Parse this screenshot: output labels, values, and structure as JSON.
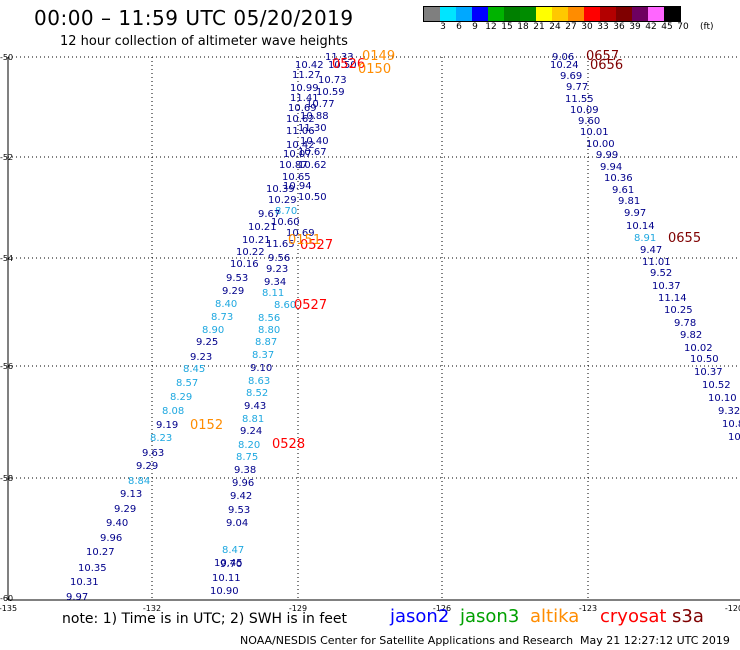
{
  "title": "00:00 – 11:59 UTC 05/20/2019",
  "subtitle": "12 hour collection of altimeter wave heights",
  "legend": {
    "colors": [
      "#7f7f7f",
      "#00e5ff",
      "#00a8ff",
      "#0000ff",
      "#00b300",
      "#007f00",
      "#008c00",
      "#ffff00",
      "#ffc800",
      "#ff8c00",
      "#ff0000",
      "#b30000",
      "#7f0000",
      "#6e0060",
      "#ff66ff",
      "#000000"
    ],
    "ticks": [
      "3",
      "6",
      "9",
      "12",
      "15",
      "18",
      "21",
      "24",
      "27",
      "30",
      "33",
      "36",
      "39",
      "42",
      "45",
      "70"
    ],
    "unit": "(ft)"
  },
  "lat_labels": [
    "-50",
    "-52",
    "-54",
    "-56",
    "-58",
    "-60"
  ],
  "lon_labels": [
    "-135",
    "-132",
    "-129",
    "-126",
    "-123",
    "-120"
  ],
  "left_track": [
    [
      "11.33",
      "#00008b"
    ],
    [
      "10.42",
      "#00008b"
    ],
    [
      "10.50",
      "#00008b"
    ],
    [
      "10.73",
      "#00008b"
    ],
    [
      "11.27",
      "#00008b"
    ],
    [
      "10.99",
      "#00008b"
    ],
    [
      "10.59",
      "#00008b"
    ],
    [
      "11.41",
      "#00008b"
    ],
    [
      "10.77",
      "#00008b"
    ],
    [
      "10.69",
      "#00008b"
    ],
    [
      "10.88",
      "#00008b"
    ],
    [
      "10.62",
      "#00008b"
    ],
    [
      "11.30",
      "#00008b"
    ],
    [
      "11.06",
      "#00008b"
    ],
    [
      "10.40",
      "#00008b"
    ],
    [
      "10.42",
      "#00008b"
    ],
    [
      "10.07",
      "#00008b"
    ],
    [
      "10.67",
      "#00008b"
    ],
    [
      "10.87",
      "#00008b"
    ],
    [
      "10.62",
      "#00008b"
    ],
    [
      "10.65",
      "#00008b"
    ],
    [
      "10.94",
      "#00008b"
    ],
    [
      "10.39",
      "#00008b"
    ],
    [
      "10.29",
      "#00008b"
    ],
    [
      "10.50",
      "#00008b"
    ],
    [
      "8.70",
      "#1fa8e0"
    ],
    [
      "9.67",
      "#00008b"
    ],
    [
      "10.60",
      "#00008b"
    ],
    [
      "10.21",
      "#00008b"
    ],
    [
      "10.69",
      "#00008b"
    ],
    [
      "10.21",
      "#00008b"
    ],
    [
      "11.65",
      "#00008b"
    ],
    [
      "10.22",
      "#00008b"
    ],
    [
      "9.56",
      "#00008b"
    ],
    [
      "10.16",
      "#00008b"
    ],
    [
      "9.23",
      "#00008b"
    ],
    [
      "9.53",
      "#00008b"
    ],
    [
      "9.34",
      "#00008b"
    ],
    [
      "9.29",
      "#00008b"
    ],
    [
      "8.11",
      "#1fa8e0"
    ],
    [
      "8.40",
      "#1fa8e0"
    ],
    [
      "8.60",
      "#1fa8e0"
    ],
    [
      "8.73",
      "#1fa8e0"
    ],
    [
      "8.56",
      "#1fa8e0"
    ],
    [
      "8.90",
      "#1fa8e0"
    ],
    [
      "8.80",
      "#1fa8e0"
    ],
    [
      "9.25",
      "#00008b"
    ],
    [
      "8.87",
      "#1fa8e0"
    ],
    [
      "9.23",
      "#00008b"
    ],
    [
      "8.37",
      "#1fa8e0"
    ],
    [
      "8.45",
      "#1fa8e0"
    ],
    [
      "9.10",
      "#00008b"
    ],
    [
      "8.57",
      "#1fa8e0"
    ],
    [
      "8.63",
      "#1fa8e0"
    ],
    [
      "8.29",
      "#1fa8e0"
    ],
    [
      "8.52",
      "#1fa8e0"
    ],
    [
      "8.08",
      "#1fa8e0"
    ],
    [
      "9.43",
      "#00008b"
    ],
    [
      "9.19",
      "#00008b"
    ],
    [
      "8.81",
      "#1fa8e0"
    ],
    [
      "9.24",
      "#00008b"
    ],
    [
      "8.23",
      "#1fa8e0"
    ],
    [
      "8.20",
      "#1fa8e0"
    ],
    [
      "9.63",
      "#00008b"
    ],
    [
      "8.75",
      "#1fa8e0"
    ],
    [
      "9.29",
      "#00008b"
    ],
    [
      "9.38",
      "#00008b"
    ],
    [
      "8.84",
      "#1fa8e0"
    ],
    [
      "9.96",
      "#00008b"
    ],
    [
      "9.13",
      "#00008b"
    ],
    [
      "9.42",
      "#00008b"
    ],
    [
      "9.29",
      "#00008b"
    ],
    [
      "9.53",
      "#00008b"
    ],
    [
      "9.40",
      "#00008b"
    ],
    [
      "9.04",
      "#00008b"
    ],
    [
      "9.96",
      "#00008b"
    ],
    [
      "8.47",
      "#1fa8e0"
    ],
    [
      "10.27",
      "#00008b"
    ],
    [
      "9.70",
      "#00008b"
    ],
    [
      "10.35",
      "#00008b"
    ],
    [
      "10.45",
      "#00008b"
    ],
    [
      "10.31",
      "#00008b"
    ],
    [
      "10.11",
      "#00008b"
    ],
    [
      "9.97",
      "#00008b"
    ],
    [
      "10.90",
      "#00008b"
    ]
  ],
  "right_track": [
    [
      "9.06",
      "#00008b"
    ],
    [
      "10.24",
      "#00008b"
    ],
    [
      "9.69",
      "#00008b"
    ],
    [
      "9.77",
      "#00008b"
    ],
    [
      "11.55",
      "#00008b"
    ],
    [
      "10.09",
      "#00008b"
    ],
    [
      "9.60",
      "#00008b"
    ],
    [
      "10.01",
      "#00008b"
    ],
    [
      "10.00",
      "#00008b"
    ],
    [
      "9.99",
      "#00008b"
    ],
    [
      "9.94",
      "#00008b"
    ],
    [
      "10.36",
      "#00008b"
    ],
    [
      "9.61",
      "#00008b"
    ],
    [
      "9.81",
      "#00008b"
    ],
    [
      "9.97",
      "#00008b"
    ],
    [
      "10.14",
      "#00008b"
    ],
    [
      "8.91",
      "#1fa8e0"
    ],
    [
      "9.47",
      "#00008b"
    ],
    [
      "11.01",
      "#00008b"
    ],
    [
      "9.52",
      "#00008b"
    ],
    [
      "10.37",
      "#00008b"
    ],
    [
      "11.14",
      "#00008b"
    ],
    [
      "10.25",
      "#00008b"
    ],
    [
      "9.78",
      "#00008b"
    ],
    [
      "9.82",
      "#00008b"
    ],
    [
      "10.02",
      "#00008b"
    ],
    [
      "10.50",
      "#00008b"
    ],
    [
      "10.37",
      "#00008b"
    ],
    [
      "10.52",
      "#00008b"
    ],
    [
      "10.10",
      "#00008b"
    ],
    [
      "9.32",
      "#00008b"
    ],
    [
      "10.8",
      "#00008b"
    ],
    [
      "10",
      "#00008b"
    ]
  ],
  "time_markers": [
    [
      "0149",
      "#ff8c00"
    ],
    [
      "0526",
      "#ff0000"
    ],
    [
      "0150",
      "#ff8c00"
    ],
    [
      "0657",
      "#7f0000"
    ],
    [
      "0656",
      "#7f0000"
    ],
    [
      "0527",
      "#ff0000"
    ],
    [
      "0151",
      "#ff8c00"
    ],
    [
      "0655",
      "#7f0000"
    ],
    [
      "0527",
      "#ff0000"
    ],
    [
      "0152",
      "#ff8c00"
    ],
    [
      "0528",
      "#ff0000"
    ]
  ],
  "footer": {
    "note": "note:  1) Time is in UTC;  2) SWH is in feet",
    "missions": [
      {
        "name": "jason2",
        "color": "#0000ff"
      },
      {
        "name": "jason3",
        "color": "#00a000"
      },
      {
        "name": "altika",
        "color": "#ff8c00"
      },
      {
        "name": "cryosat",
        "color": "#ff0000"
      },
      {
        "name": "s3a",
        "color": "#7f0000"
      }
    ],
    "credit": "NOAA/NESDIS Center for Satellite Applications and Research",
    "timestamp": "May 21 12:27:12 UTC 2019"
  }
}
